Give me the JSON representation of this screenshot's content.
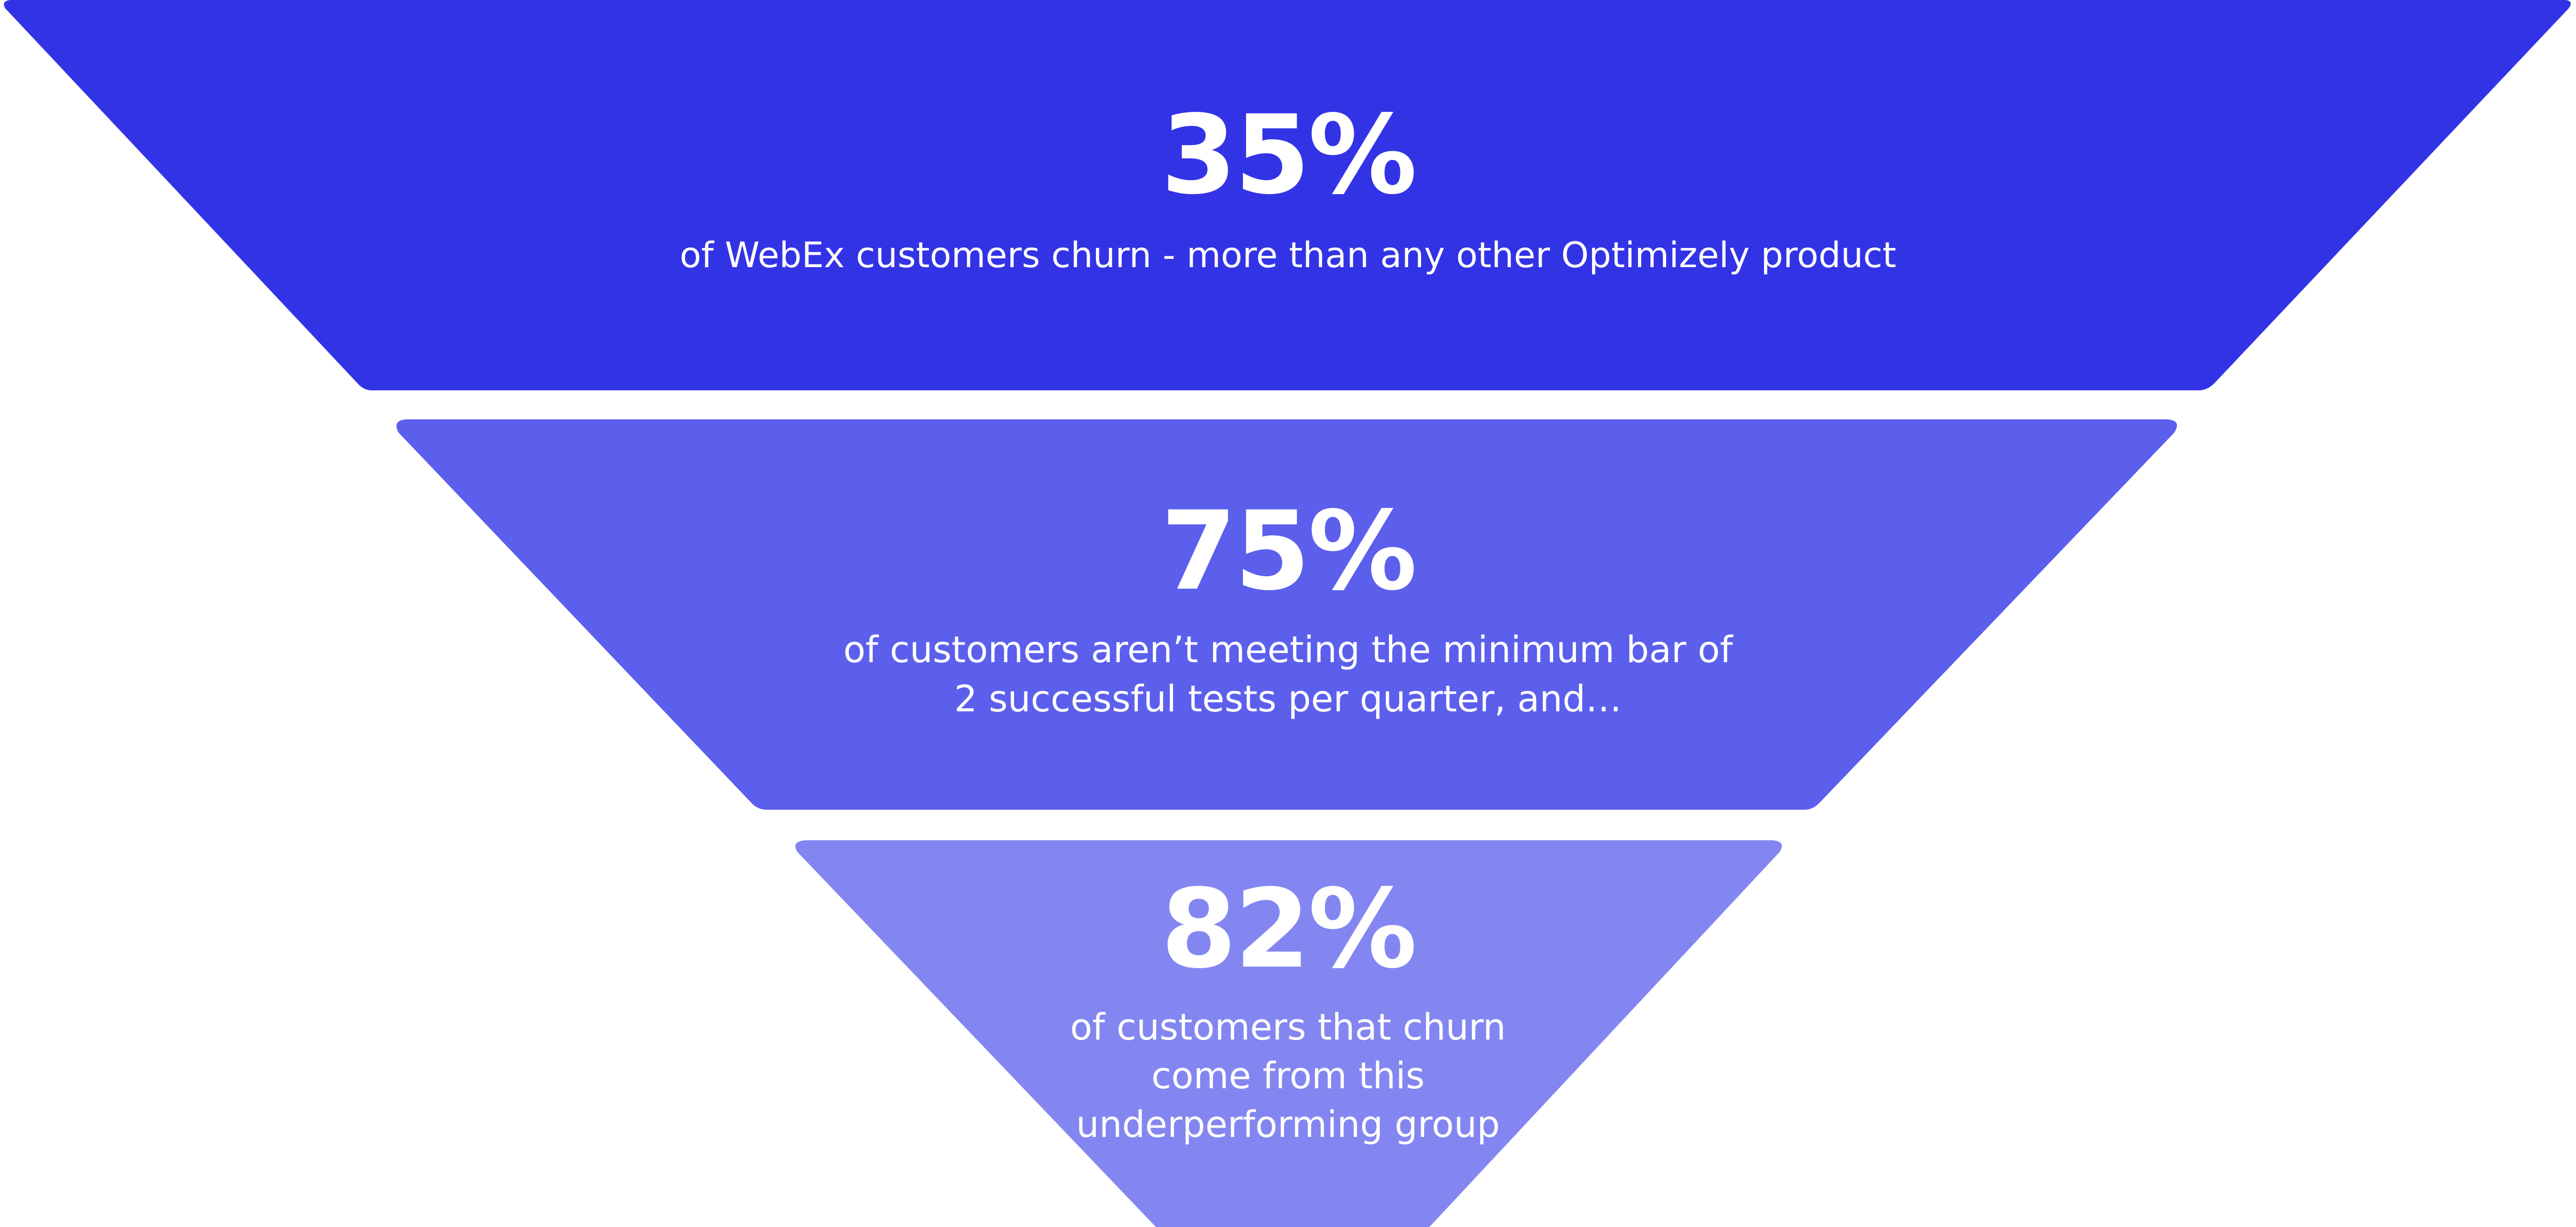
{
  "colors": {
    "background": "#ffffff",
    "tier_1_fill": "#3333e6",
    "tier_2_fill": "#5c5fec",
    "tier_3_fill": "#8386f0",
    "text": "#ffffff"
  },
  "tiers": [
    {
      "stat": "35%",
      "description": "of WebEx customers churn - more than any other Optimizely product"
    },
    {
      "stat": "75%",
      "description": "of customers aren’t meeting the minimum bar of 2 successful tests per quarter, and…"
    },
    {
      "stat": "82%",
      "description": "of customers that churn come from this underperforming group"
    }
  ]
}
